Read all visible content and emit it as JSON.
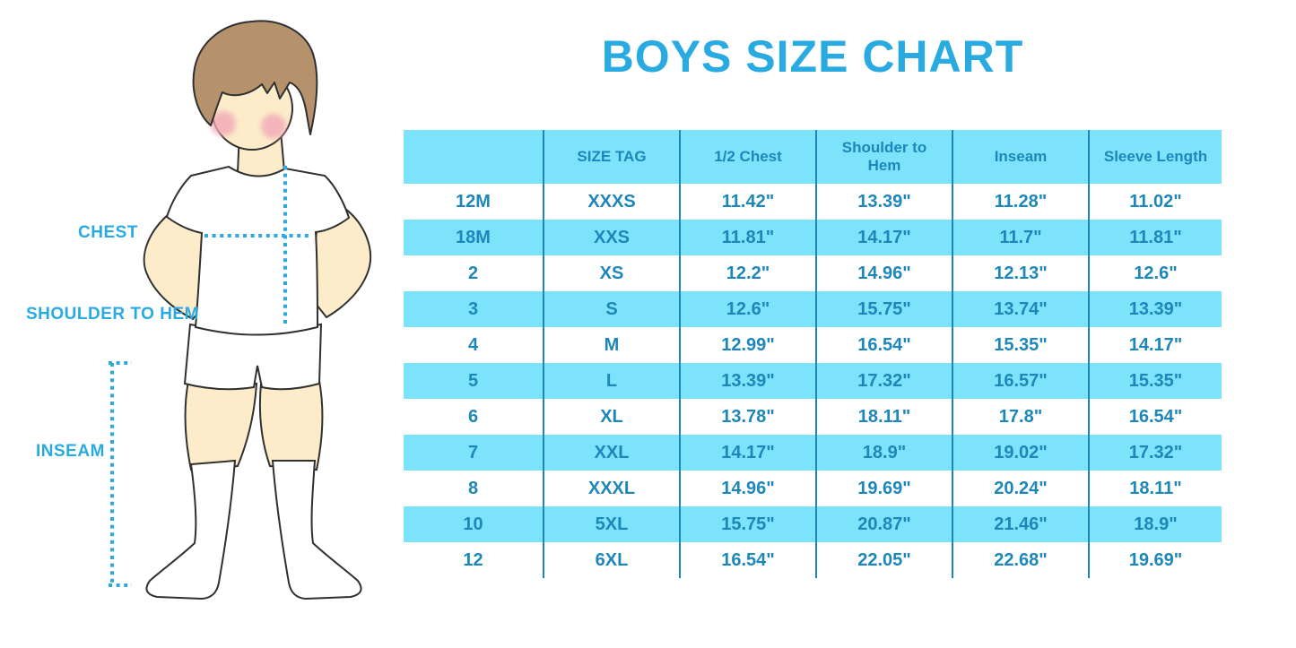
{
  "title": "BOYS SIZE CHART",
  "figure": {
    "chest_label": "CHEST",
    "shoulder_to_hem_label": "SHOULDER TO HEM",
    "inseam_label": "INSEAM"
  },
  "colors": {
    "accent_blue": "#29abe2",
    "table_text_blue": "#1d87ba",
    "row_cyan": "#7ce3fa",
    "divider_blue": "#1d86b8",
    "hair_brown": "#b5926c",
    "skin_tone": "#fcecca",
    "blush_pink": "#f2a8b8",
    "outline_dark": "#303030"
  },
  "chart_data": {
    "type": "table",
    "title": "BOYS SIZE CHART",
    "columns": [
      "",
      "SIZE TAG",
      "1/2 Chest",
      "Shoulder to Hem",
      "Inseam",
      "Sleeve Length"
    ],
    "rows": [
      [
        "12M",
        "XXXS",
        "11.42\"",
        "13.39\"",
        "11.28\"",
        "11.02\""
      ],
      [
        "18M",
        "XXS",
        "11.81\"",
        "14.17\"",
        "11.7\"",
        "11.81\""
      ],
      [
        "2",
        "XS",
        "12.2\"",
        "14.96\"",
        "12.13\"",
        "12.6\""
      ],
      [
        "3",
        "S",
        "12.6\"",
        "15.75\"",
        "13.74\"",
        "13.39\""
      ],
      [
        "4",
        "M",
        "12.99\"",
        "16.54\"",
        "15.35\"",
        "14.17\""
      ],
      [
        "5",
        "L",
        "13.39\"",
        "17.32\"",
        "16.57\"",
        "15.35\""
      ],
      [
        "6",
        "XL",
        "13.78\"",
        "18.11\"",
        "17.8\"",
        "16.54\""
      ],
      [
        "7",
        "XXL",
        "14.17\"",
        "18.9\"",
        "19.02\"",
        "17.32\""
      ],
      [
        "8",
        "XXXL",
        "14.96\"",
        "19.69\"",
        "20.24\"",
        "18.11\""
      ],
      [
        "10",
        "5XL",
        "15.75\"",
        "20.87\"",
        "21.46\"",
        "18.9\""
      ],
      [
        "12",
        "6XL",
        "16.54\"",
        "22.05\"",
        "22.68\"",
        "19.69\""
      ]
    ],
    "row_striping": "header cyan, then rows alternate white/cyan starting with white",
    "units": "inches"
  }
}
